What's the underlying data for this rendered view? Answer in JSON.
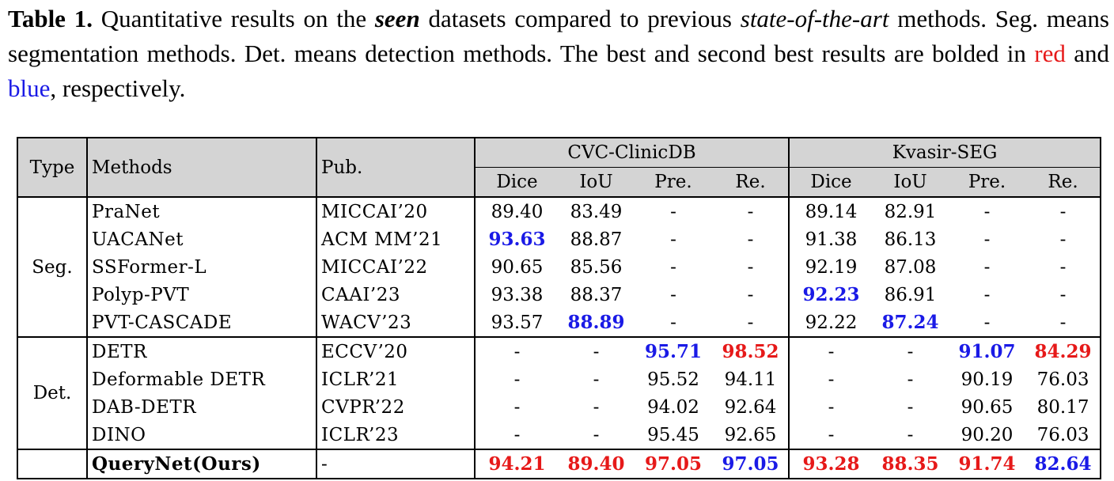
{
  "caption": {
    "label": "Table 1.",
    "part1": " Quantitative results on the ",
    "seen": "seen",
    "part2": " datasets compared to previous ",
    "sota": "state-of-the-art",
    "part3": " methods. Seg. means segmentation methods. Det. means detection methods. The best and second best results are bolded in ",
    "red_word": "red",
    "part4": " and ",
    "blue_word": "blue",
    "part5": ", respectively."
  },
  "header": {
    "type": "Type",
    "methods": "Methods",
    "pub": "Pub.",
    "dataset1": "CVC-ClinicDB",
    "dataset2": "Kvasir-SEG",
    "metrics": [
      "Dice",
      "IoU",
      "Pre.",
      "Re.",
      "Dice",
      "IoU",
      "Pre.",
      "Re."
    ]
  },
  "groups": {
    "seg": "Seg.",
    "det": "Det."
  },
  "rows": [
    {
      "method": "PraNet",
      "pub": "MICCAI’20",
      "vals": [
        "89.40",
        "83.49",
        "-",
        "-",
        "89.14",
        "82.91",
        "-",
        "-"
      ]
    },
    {
      "method": "UACANet",
      "pub": "ACM MM’21",
      "vals": [
        "93.63",
        "88.87",
        "-",
        "-",
        "91.38",
        "86.13",
        "-",
        "-"
      ]
    },
    {
      "method": "SSFormer-L",
      "pub": "MICCAI’22",
      "vals": [
        "90.65",
        "85.56",
        "-",
        "-",
        "92.19",
        "87.08",
        "-",
        "-"
      ]
    },
    {
      "method": "Polyp-PVT",
      "pub": "CAAI’23",
      "vals": [
        "93.38",
        "88.37",
        "-",
        "-",
        "92.23",
        "86.91",
        "-",
        "-"
      ]
    },
    {
      "method": "PVT-CASCADE",
      "pub": "WACV’23",
      "vals": [
        "93.57",
        "88.89",
        "-",
        "-",
        "92.22",
        "87.24",
        "-",
        "-"
      ]
    },
    {
      "method": "DETR",
      "pub": "ECCV’20",
      "vals": [
        "-",
        "-",
        "95.71",
        "98.52",
        "-",
        "-",
        "91.07",
        "84.29"
      ]
    },
    {
      "method": "Deformable DETR",
      "pub": "ICLR’21",
      "vals": [
        "-",
        "-",
        "95.52",
        "94.11",
        "-",
        "-",
        "90.19",
        "76.03"
      ]
    },
    {
      "method": "DAB-DETR",
      "pub": "CVPR’22",
      "vals": [
        "-",
        "-",
        "94.02",
        "92.64",
        "-",
        "-",
        "90.65",
        "80.17"
      ]
    },
    {
      "method": "DINO",
      "pub": "ICLR’23",
      "vals": [
        "-",
        "-",
        "95.45",
        "92.65",
        "-",
        "-",
        "90.20",
        "76.03"
      ]
    },
    {
      "method": "QueryNet(Ours)",
      "pub": "-",
      "vals": [
        "94.21",
        "89.40",
        "97.05",
        "97.05",
        "93.28",
        "88.35",
        "91.74",
        "82.64"
      ]
    }
  ],
  "colors": {
    "best": "#e61919",
    "second": "#1a1ae6",
    "header_bg": "#d4d4d4"
  }
}
